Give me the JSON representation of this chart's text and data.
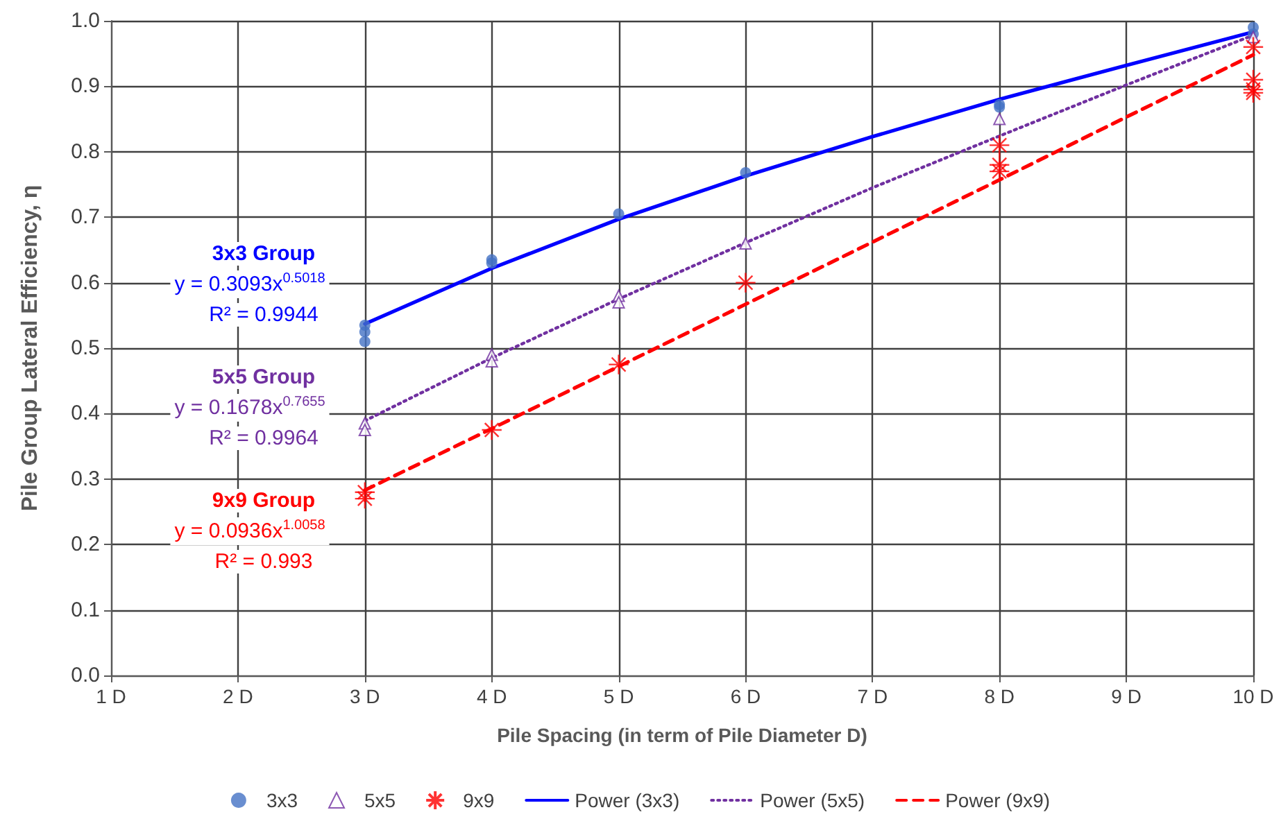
{
  "chart_data": {
    "type": "scatter",
    "xlabel": "Pile Spacing (in term of Pile Diameter D)",
    "ylabel": "Pile Group Lateral Efficiency, η",
    "xlim": [
      1,
      10
    ],
    "xticks": [
      {
        "value": 1,
        "label": "1 D"
      },
      {
        "value": 2,
        "label": "2 D"
      },
      {
        "value": 3,
        "label": "3 D"
      },
      {
        "value": 4,
        "label": "4 D"
      },
      {
        "value": 5,
        "label": "5 D"
      },
      {
        "value": 6,
        "label": "6 D"
      },
      {
        "value": 7,
        "label": "7 D"
      },
      {
        "value": 8,
        "label": "8 D"
      },
      {
        "value": 9,
        "label": "9 D"
      },
      {
        "value": 10,
        "label": "10 D"
      }
    ],
    "ylim": [
      0,
      1
    ],
    "yticks": [
      {
        "value": 0,
        "label": "0.0"
      },
      {
        "value": 0.1,
        "label": "0.1"
      },
      {
        "value": 0.2,
        "label": "0.2"
      },
      {
        "value": 0.3,
        "label": "0.3"
      },
      {
        "value": 0.4,
        "label": "0.4"
      },
      {
        "value": 0.5,
        "label": "0.5"
      },
      {
        "value": 0.6,
        "label": "0.6"
      },
      {
        "value": 0.7,
        "label": "0.7"
      },
      {
        "value": 0.8,
        "label": "0.8"
      },
      {
        "value": 0.9,
        "label": "0.9"
      },
      {
        "value": 1,
        "label": "1.0"
      }
    ],
    "grid": true,
    "legend": "bottom",
    "series": [
      {
        "name": "3x3",
        "marker": "circle",
        "color": "#4472c4",
        "x": [
          3,
          3,
          3,
          4,
          4,
          5,
          6,
          8,
          8,
          10,
          10
        ],
        "values": [
          0.535,
          0.525,
          0.51,
          0.635,
          0.63,
          0.705,
          0.768,
          0.872,
          0.868,
          0.99,
          0.98
        ]
      },
      {
        "name": "5x5",
        "marker": "triangle",
        "color": "#7030a0",
        "x": [
          3,
          3,
          4,
          4,
          5,
          5,
          6,
          8,
          10
        ],
        "values": [
          0.385,
          0.375,
          0.49,
          0.48,
          0.58,
          0.57,
          0.66,
          0.85,
          0.975
        ]
      },
      {
        "name": "9x9",
        "marker": "star",
        "color": "#ff0000",
        "x": [
          3,
          3,
          4,
          5,
          6,
          8,
          8,
          8,
          10,
          10,
          10,
          10
        ],
        "values": [
          0.28,
          0.27,
          0.375,
          0.475,
          0.6,
          0.81,
          0.78,
          0.77,
          0.96,
          0.91,
          0.895,
          0.89
        ]
      },
      {
        "name": "Power (3x3)",
        "type": "line",
        "marker": "none",
        "line_style": "solid",
        "color": "#0000ff",
        "x": [
          3,
          4,
          5,
          6,
          7,
          8,
          9,
          10
        ],
        "values": [
          0.537,
          0.622,
          0.697,
          0.763,
          0.823,
          0.88,
          0.932,
          0.983
        ]
      },
      {
        "name": "Power (5x5)",
        "type": "line",
        "marker": "none",
        "line_style": "dotted",
        "color": "#7030a0",
        "x": [
          3,
          4,
          5,
          6,
          7,
          8,
          9,
          10
        ],
        "values": [
          0.389,
          0.485,
          0.575,
          0.661,
          0.745,
          0.824,
          0.902,
          0.978
        ]
      },
      {
        "name": "Power (9x9)",
        "type": "line",
        "marker": "none",
        "line_style": "dashed",
        "color": "#ff0000",
        "x": [
          3,
          4,
          5,
          6,
          7,
          8,
          9,
          10
        ],
        "values": [
          0.283,
          0.377,
          0.472,
          0.567,
          0.662,
          0.757,
          0.853,
          0.948
        ]
      }
    ],
    "annotations": [
      "3x3 Group",
      "y = 0.3093x$^{0.5018}$",
      "R² = 0.9944",
      "5x5 Group",
      "y = 0.1678x$^{0.7655}$",
      "R² = 0.9964",
      "9x9 Group",
      "y = 0.0936x$^{1.0058}$",
      "R² = 0.993"
    ]
  }
}
